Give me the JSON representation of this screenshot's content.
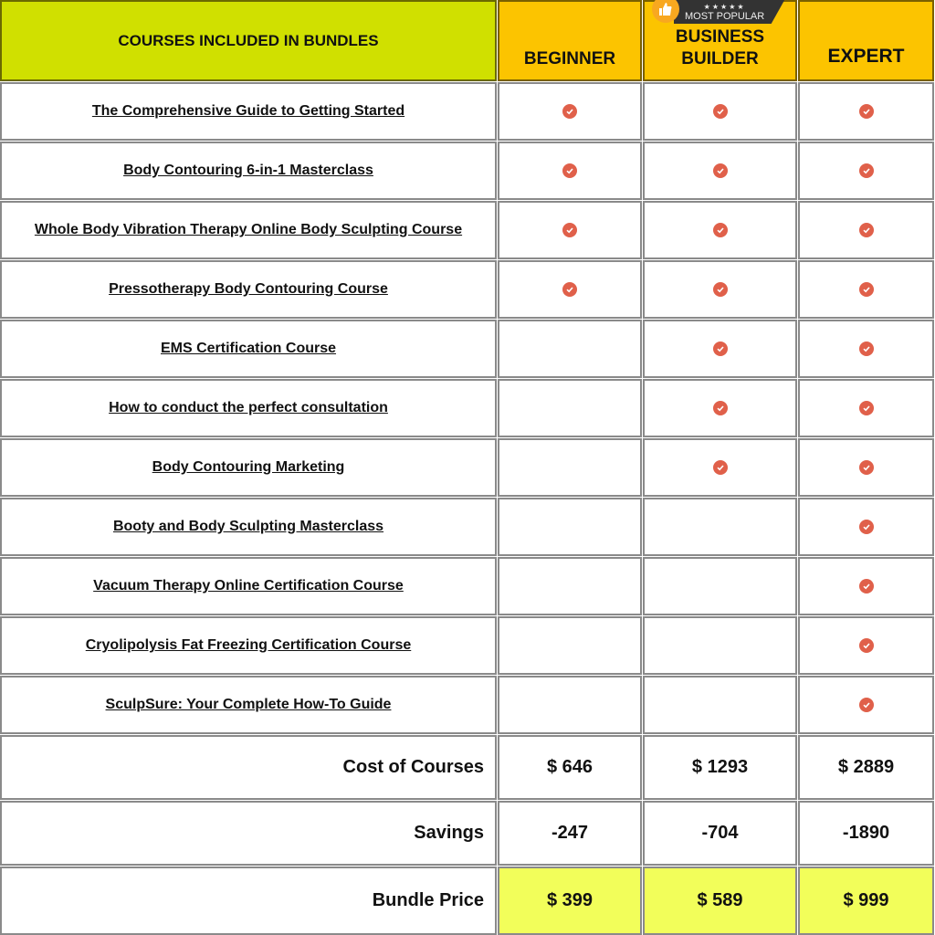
{
  "header": {
    "title": "COURSES INCLUDED IN BUNDLES",
    "badge": {
      "stars": "★★★★★",
      "label": "MOST POPULAR",
      "icon": "thumbs-up-icon"
    },
    "columns": [
      {
        "label": "BEGINNER"
      },
      {
        "label_line1": "BUSINESS",
        "label_line2": "BUILDER"
      },
      {
        "label": "EXPERT"
      }
    ]
  },
  "colors": {
    "header_main": "#d0e000",
    "header_tiers": "#fcc400",
    "check": "#e0604a",
    "bundle_price": "#f2fe5a"
  },
  "courses": [
    {
      "name": "The Comprehensive Guide to Getting Started",
      "included": [
        true,
        true,
        true
      ]
    },
    {
      "name": "Body Contouring 6-in-1 Masterclass",
      "included": [
        true,
        true,
        true
      ]
    },
    {
      "name": "Whole Body Vibration Therapy Online Body Sculpting Course",
      "included": [
        true,
        true,
        true
      ]
    },
    {
      "name": "Pressotherapy Body Contouring Course",
      "included": [
        true,
        true,
        true
      ]
    },
    {
      "name": "EMS Certification Course",
      "included": [
        false,
        true,
        true
      ]
    },
    {
      "name": "How to conduct the perfect consultation",
      "included": [
        false,
        true,
        true
      ]
    },
    {
      "name": "Body Contouring Marketing",
      "included": [
        false,
        true,
        true
      ]
    },
    {
      "name": "Booty and Body Sculpting Masterclass",
      "included": [
        false,
        false,
        true
      ]
    },
    {
      "name": "Vacuum Therapy Online Certification Course",
      "included": [
        false,
        false,
        true
      ]
    },
    {
      "name": "Cryolipolysis Fat Freezing Certification Course",
      "included": [
        false,
        false,
        true
      ]
    },
    {
      "name": "SculpSure: Your Complete How-To Guide",
      "included": [
        false,
        false,
        true
      ]
    }
  ],
  "summary": [
    {
      "label": "Cost of Courses",
      "values": [
        "$ 646",
        "$ 1293",
        "$ 2889"
      ]
    },
    {
      "label": "Savings",
      "values": [
        "-247",
        "-704",
        "-1890"
      ]
    },
    {
      "label": "Bundle Price",
      "values": [
        "$ 399",
        "$ 589",
        "$ 999"
      ]
    }
  ]
}
